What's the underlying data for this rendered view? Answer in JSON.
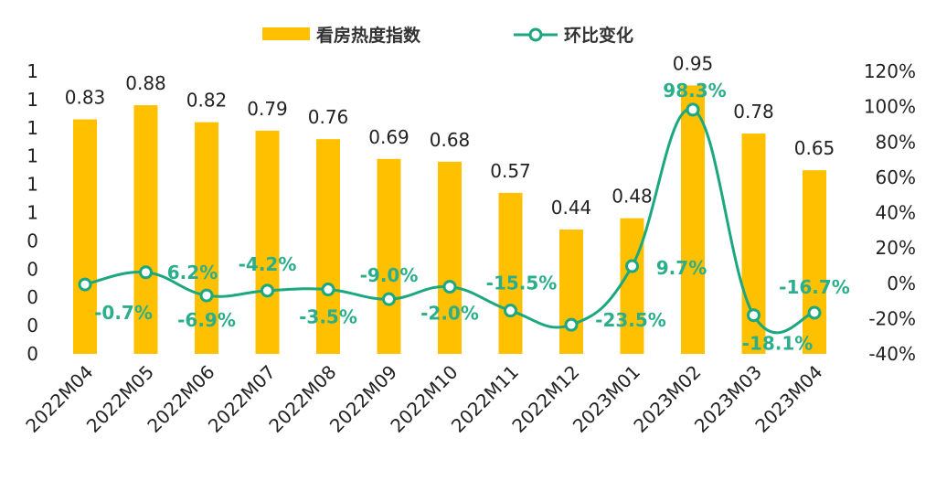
{
  "chart_data": {
    "type": "bar+line",
    "categories": [
      "2022M04",
      "2022M05",
      "2022M06",
      "2022M07",
      "2022M08",
      "2022M09",
      "2022M10",
      "2022M11",
      "2022M12",
      "2023M01",
      "2023M02",
      "2023M03",
      "2023M04"
    ],
    "series": [
      {
        "name": "看房热度指数",
        "type": "bar",
        "axis": "left",
        "color": "#FFC000",
        "values": [
          0.83,
          0.88,
          0.82,
          0.79,
          0.76,
          0.69,
          0.68,
          0.57,
          0.44,
          0.48,
          0.95,
          0.78,
          0.65
        ],
        "labels": [
          "0.83",
          "0.88",
          "0.82",
          "0.79",
          "0.76",
          "0.69",
          "0.68",
          "0.57",
          "0.44",
          "0.48",
          "0.95",
          "0.78",
          "0.65"
        ]
      },
      {
        "name": "环比变化",
        "type": "line",
        "axis": "right",
        "color": "#1BA77F",
        "values": [
          -0.7,
          6.2,
          -6.9,
          -4.2,
          -3.5,
          -9.0,
          -2.0,
          -15.5,
          -23.5,
          9.7,
          98.3,
          -18.1,
          -16.7
        ],
        "labels": [
          "-0.7%",
          "6.2%",
          "-6.9%",
          "-4.2%",
          "-3.5%",
          "-9.0%",
          "-2.0%",
          "-15.5%",
          "-23.5%",
          "9.7%",
          "98.3%",
          "-18.1%",
          "-16.7%"
        ]
      }
    ],
    "y_left": {
      "range": [
        0,
        1.0
      ],
      "tick_labels": [
        "0",
        "0",
        "0",
        "0",
        "0",
        "1",
        "1",
        "1",
        "1",
        "1",
        "1"
      ]
    },
    "y_right": {
      "range": [
        -40,
        120
      ],
      "tick_labels": [
        "-40%",
        "-20%",
        "0%",
        "20%",
        "40%",
        "60%",
        "80%",
        "100%",
        "120%"
      ]
    },
    "grid": false,
    "legend": "top"
  }
}
